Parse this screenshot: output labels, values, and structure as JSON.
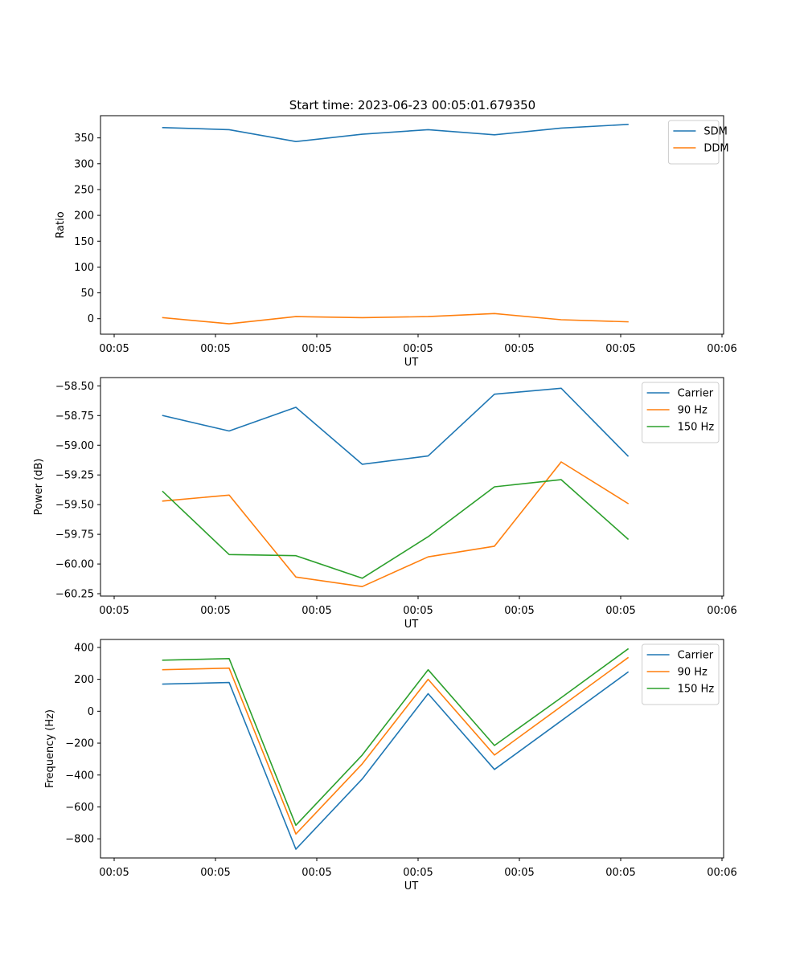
{
  "figure_title": "Start time: 2023-06-23 00:05:01.679350",
  "chart_data": [
    {
      "type": "line",
      "title": "Start time: 2023-06-23 00:05:01.679350",
      "xlabel": "UT",
      "ylabel": "Ratio",
      "x_ticks": [
        "00:05",
        "00:05",
        "00:05",
        "00:05",
        "00:05",
        "00:05",
        "00:06"
      ],
      "yticks": [
        0,
        50,
        100,
        150,
        200,
        250,
        300,
        350
      ],
      "ylim": [
        -30,
        393
      ],
      "legend_position": "top-right",
      "grid": false,
      "series": [
        {
          "name": "SDM",
          "color": "#1f77b4",
          "values": [
            370,
            366,
            343,
            357,
            366,
            356,
            369,
            376
          ]
        },
        {
          "name": "DDM",
          "color": "#ff7f0e",
          "values": [
            2,
            -10,
            4,
            2,
            4,
            10,
            -2,
            -6
          ]
        }
      ]
    },
    {
      "type": "line",
      "title": "",
      "xlabel": "UT",
      "ylabel": "Power (dB)",
      "x_ticks": [
        "00:05",
        "00:05",
        "00:05",
        "00:05",
        "00:05",
        "00:05",
        "00:06"
      ],
      "yticks": [
        -60.25,
        -60.0,
        -59.75,
        -59.5,
        -59.25,
        -59.0,
        -58.75,
        -58.5
      ],
      "tick_format": "2",
      "ylim": [
        -60.27,
        -58.43
      ],
      "legend_position": "top-right",
      "grid": false,
      "series": [
        {
          "name": "Carrier",
          "color": "#1f77b4",
          "values": [
            -58.75,
            -58.88,
            -58.68,
            -59.16,
            -59.09,
            -58.57,
            -58.52,
            -59.09
          ]
        },
        {
          "name": "90 Hz",
          "color": "#ff7f0e",
          "values": [
            -59.47,
            -59.42,
            -60.11,
            -60.19,
            -59.94,
            -59.85,
            -59.14,
            -59.49
          ]
        },
        {
          "name": "150 Hz",
          "color": "#2ca02c",
          "values": [
            -59.39,
            -59.92,
            -59.93,
            -60.12,
            -59.77,
            -59.35,
            -59.29,
            -59.79
          ]
        }
      ]
    },
    {
      "type": "line",
      "title": "",
      "xlabel": "UT",
      "ylabel": "Frequency (Hz)",
      "x_ticks": [
        "00:05",
        "00:05",
        "00:05",
        "00:05",
        "00:05",
        "00:05",
        "00:06"
      ],
      "yticks": [
        -800,
        -600,
        -400,
        -200,
        0,
        200,
        400
      ],
      "ylim": [
        -920,
        450
      ],
      "legend_position": "top-right",
      "grid": false,
      "series": [
        {
          "name": "Carrier",
          "color": "#1f77b4",
          "values": [
            170,
            180,
            -865,
            -425,
            110,
            -365,
            -60,
            245
          ]
        },
        {
          "name": "90 Hz",
          "color": "#ff7f0e",
          "values": [
            260,
            270,
            -770,
            -330,
            200,
            -275,
            30,
            335
          ]
        },
        {
          "name": "150 Hz",
          "color": "#2ca02c",
          "values": [
            320,
            330,
            -715,
            -275,
            260,
            -215,
            85,
            390
          ]
        }
      ]
    }
  ]
}
